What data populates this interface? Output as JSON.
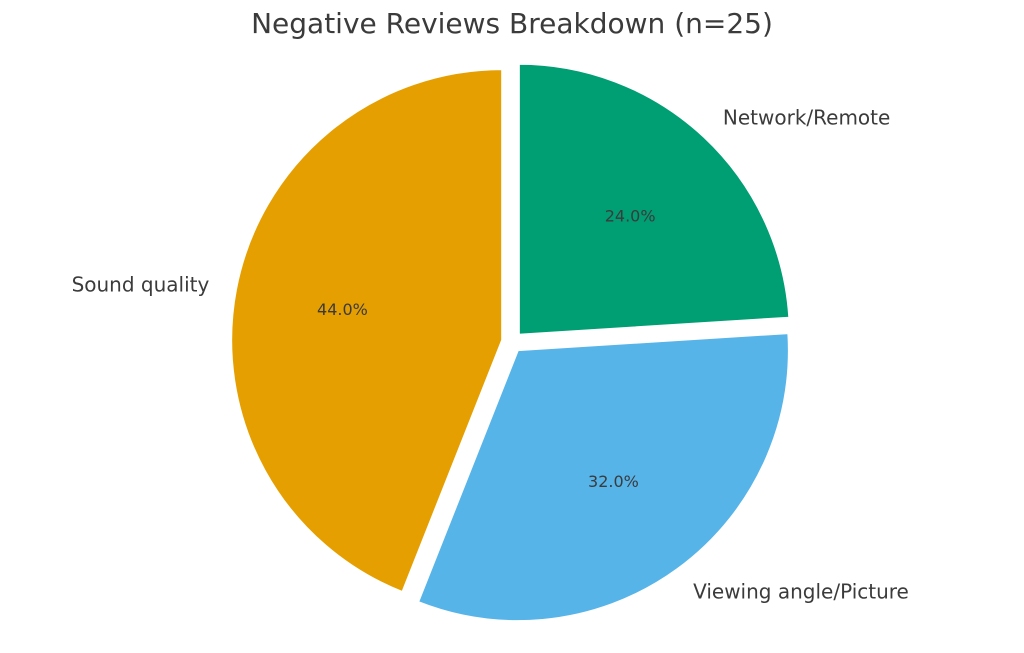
{
  "chart_data": {
    "type": "pie",
    "title": "Negative Reviews Breakdown (n=25)",
    "slices": [
      {
        "label": "Network/Remote",
        "value": 24.0,
        "pct_label": "24.0%",
        "color": "#009e73"
      },
      {
        "label": "Viewing angle/Picture",
        "value": 32.0,
        "pct_label": "32.0%",
        "color": "#56b4e9"
      },
      {
        "label": "Sound quality",
        "value": 44.0,
        "pct_label": "44.0%",
        "color": "#e69f00"
      }
    ],
    "start_angle": "90 degrees (top), clockwise",
    "exploded": true
  }
}
